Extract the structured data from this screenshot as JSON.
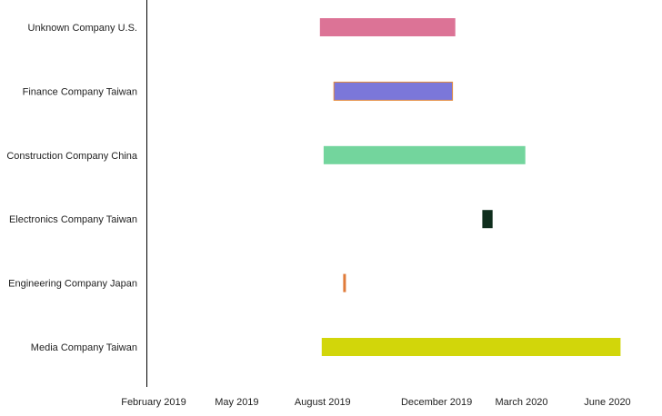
{
  "chart_data": {
    "type": "bar",
    "orientation": "horizontal-timeline",
    "title": "",
    "xlabel": "",
    "ylabel": "",
    "x_ticks": [
      "February 2019",
      "May 2019",
      "August 2019",
      "December 2019",
      "March 2020",
      "June 2020"
    ],
    "x_tick_dates": [
      "2019-02-01",
      "2019-05-01",
      "2019-08-01",
      "2019-12-01",
      "2020-03-01",
      "2020-06-01"
    ],
    "series": [
      {
        "category": "Unknown Company U.S.",
        "start": "2019-07-29",
        "end": "2019-12-21",
        "color": "#dc7396"
      },
      {
        "category": "Finance Company Taiwan",
        "start": "2019-08-13",
        "end": "2019-12-18",
        "color": "#7b77d9",
        "border": "#e38b3c"
      },
      {
        "category": "Construction Company China",
        "start": "2019-08-02",
        "end": "2020-03-05",
        "color": "#73d59d"
      },
      {
        "category": "Electronics Company Taiwan",
        "start": "2020-01-19",
        "end": "2020-01-30",
        "color": "#0f2e1d"
      },
      {
        "category": "Engineering Company Japan",
        "start": "2019-08-23",
        "end": "2019-08-25",
        "color": "#e07b3a"
      },
      {
        "category": "Media Company Taiwan",
        "start": "2019-07-31",
        "end": "2020-06-15",
        "color": "#d2d60a"
      }
    ],
    "grid": false,
    "legend": "none"
  }
}
